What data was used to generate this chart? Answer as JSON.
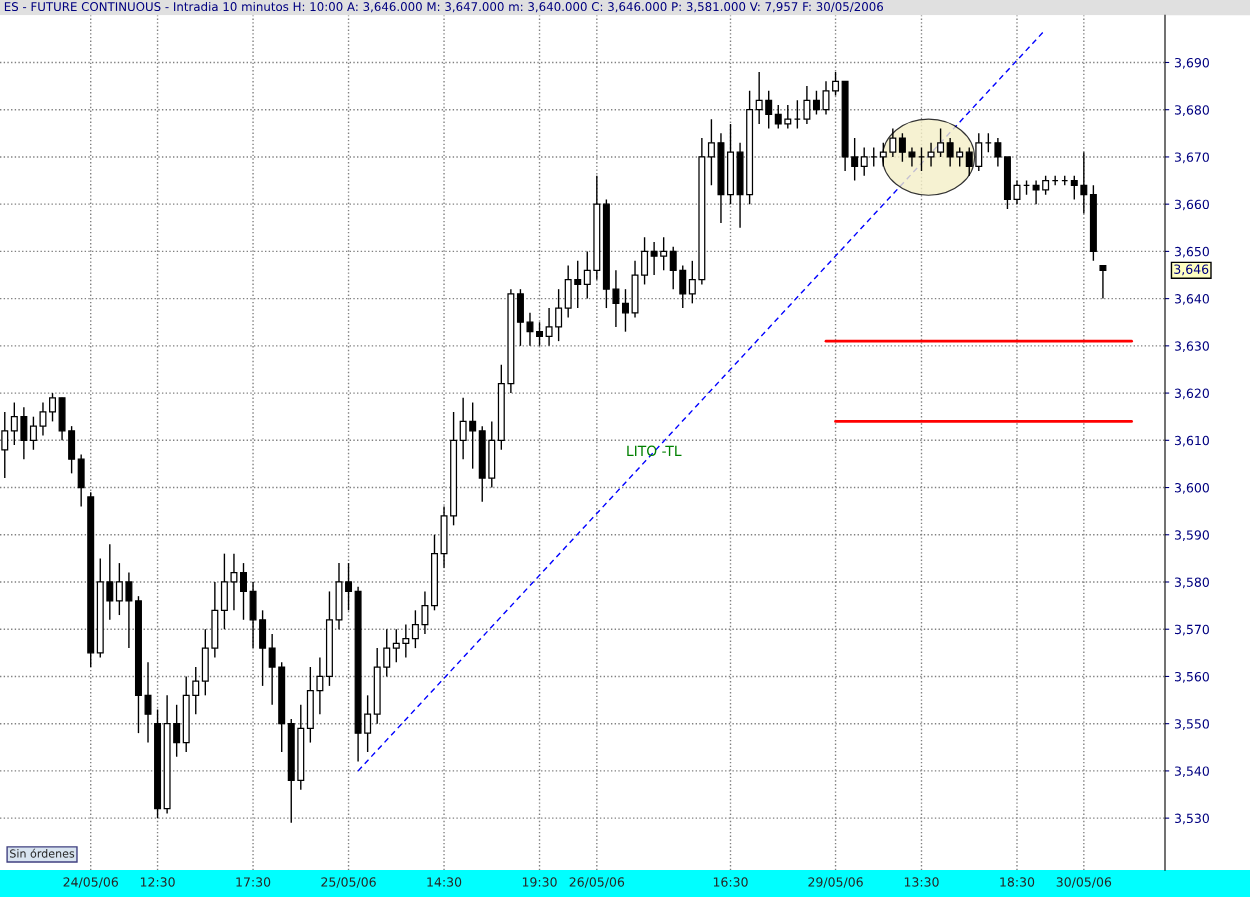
{
  "chart_data": {
    "type": "candlestick",
    "title": "ES - FUTURE CONTINUOUS - Intradia 10 minutos H: 10:00 A: 3,646.000 M: 3,647.000 m: 3,640.000 C: 3,646.000 P: 3,581.000 V: 7,957 F: 30/05/2006",
    "categories": [
      null,
      null,
      null,
      null,
      null,
      null,
      null,
      null,
      null,
      "24/05/06",
      null,
      null,
      null,
      null,
      null,
      null,
      "12:30",
      null,
      null,
      null,
      null,
      null,
      null,
      null,
      null,
      null,
      "17:30",
      null,
      null,
      null,
      null,
      null,
      null,
      null,
      null,
      null,
      "25/05/06",
      null,
      null,
      null,
      null,
      null,
      null,
      null,
      null,
      null,
      "14:30",
      null,
      null,
      null,
      null,
      null,
      null,
      null,
      null,
      null,
      "19:30",
      null,
      null,
      null,
      null,
      null,
      "26/05/06",
      null,
      null,
      null,
      null,
      null,
      null,
      null,
      null,
      null,
      null,
      null,
      null,
      null,
      "16:30",
      null,
      null,
      null,
      null,
      null,
      null,
      null,
      null,
      null,
      null,
      "29/05/06",
      null,
      null,
      null,
      null,
      null,
      null,
      null,
      null,
      "13:30",
      null,
      null,
      null,
      null,
      null,
      null,
      null,
      null,
      null,
      "18:30",
      null,
      null,
      null,
      null,
      null,
      null,
      "30/05/06",
      null,
      null,
      null,
      null,
      null,
      null,
      null,
      null
    ],
    "ohlc": [
      [
        3608,
        3616,
        3602,
        3612
      ],
      [
        3612,
        3618,
        3609,
        3615
      ],
      [
        3615,
        3617,
        3606,
        3610
      ],
      [
        3610,
        3615,
        3608,
        3613
      ],
      [
        3613,
        3618,
        3611,
        3616
      ],
      [
        3616,
        3620,
        3614,
        3619
      ],
      [
        3619,
        3619,
        3610,
        3612
      ],
      [
        3612,
        3613,
        3603,
        3606
      ],
      [
        3606,
        3607,
        3596,
        3600
      ],
      [
        3598,
        3599,
        3562,
        3565
      ],
      [
        3565,
        3585,
        3564,
        3580
      ],
      [
        3580,
        3588,
        3572,
        3576
      ],
      [
        3576,
        3584,
        3573,
        3580
      ],
      [
        3580,
        3582,
        3566,
        3576
      ],
      [
        3576,
        3577,
        3548,
        3556
      ],
      [
        3556,
        3563,
        3546,
        3552
      ],
      [
        3550,
        3553,
        3530,
        3532
      ],
      [
        3532,
        3556,
        3531,
        3550
      ],
      [
        3550,
        3554,
        3543,
        3546
      ],
      [
        3546,
        3560,
        3544,
        3556
      ],
      [
        3556,
        3562,
        3552,
        3559
      ],
      [
        3559,
        3570,
        3556,
        3566
      ],
      [
        3566,
        3580,
        3564,
        3574
      ],
      [
        3574,
        3586,
        3570,
        3580
      ],
      [
        3580,
        3586,
        3574,
        3582
      ],
      [
        3582,
        3584,
        3572,
        3578
      ],
      [
        3578,
        3580,
        3566,
        3572
      ],
      [
        3572,
        3574,
        3558,
        3566
      ],
      [
        3566,
        3569,
        3554,
        3562
      ],
      [
        3562,
        3563,
        3544,
        3550
      ],
      [
        3550,
        3551,
        3529,
        3538
      ],
      [
        3538,
        3554,
        3536,
        3549
      ],
      [
        3549,
        3562,
        3546,
        3557
      ],
      [
        3557,
        3564,
        3552,
        3560
      ],
      [
        3560,
        3578,
        3558,
        3572
      ],
      [
        3572,
        3584,
        3570,
        3580
      ],
      [
        3580,
        3584,
        3574,
        3578
      ],
      [
        3578,
        3579,
        3542,
        3548
      ],
      [
        3548,
        3556,
        3544,
        3552
      ],
      [
        3552,
        3566,
        3550,
        3562
      ],
      [
        3562,
        3570,
        3560,
        3566
      ],
      [
        3566,
        3570,
        3563,
        3567
      ],
      [
        3567,
        3571,
        3564,
        3568
      ],
      [
        3568,
        3574,
        3566,
        3571
      ],
      [
        3571,
        3578,
        3569,
        3575
      ],
      [
        3575,
        3590,
        3574,
        3586
      ],
      [
        3586,
        3596,
        3583,
        3594
      ],
      [
        3594,
        3616,
        3592,
        3610
      ],
      [
        3610,
        3619,
        3606,
        3614
      ],
      [
        3614,
        3618,
        3604,
        3612
      ],
      [
        3612,
        3613,
        3597,
        3602
      ],
      [
        3602,
        3614,
        3600,
        3610
      ],
      [
        3610,
        3626,
        3608,
        3622
      ],
      [
        3622,
        3642,
        3620,
        3641
      ],
      [
        3641,
        3642,
        3630,
        3635
      ],
      [
        3635,
        3637,
        3630,
        3633
      ],
      [
        3633,
        3635,
        3630,
        3632
      ],
      [
        3632,
        3638,
        3630,
        3634
      ],
      [
        3634,
        3642,
        3631,
        3638
      ],
      [
        3638,
        3647,
        3636,
        3644
      ],
      [
        3644,
        3648,
        3638,
        3643
      ],
      [
        3643,
        3650,
        3640,
        3646
      ],
      [
        3646,
        3666,
        3644,
        3660
      ],
      [
        3660,
        3661,
        3638,
        3642
      ],
      [
        3642,
        3646,
        3634,
        3639
      ],
      [
        3639,
        3642,
        3633,
        3637
      ],
      [
        3637,
        3648,
        3636,
        3645
      ],
      [
        3645,
        3653,
        3643,
        3650
      ],
      [
        3650,
        3652,
        3645,
        3649
      ],
      [
        3649,
        3653,
        3646,
        3650
      ],
      [
        3650,
        3651,
        3642,
        3646
      ],
      [
        3646,
        3647,
        3638,
        3641
      ],
      [
        3641,
        3648,
        3639,
        3644
      ],
      [
        3644,
        3674,
        3643,
        3670
      ],
      [
        3670,
        3678,
        3664,
        3673
      ],
      [
        3673,
        3675,
        3656,
        3662
      ],
      [
        3662,
        3677,
        3660,
        3671
      ],
      [
        3671,
        3673,
        3655,
        3662
      ],
      [
        3662,
        3684,
        3660,
        3680
      ],
      [
        3680,
        3688,
        3677,
        3682
      ],
      [
        3682,
        3684,
        3676,
        3679
      ],
      [
        3679,
        3681,
        3676,
        3677
      ],
      [
        3677,
        3681,
        3676,
        3678
      ],
      [
        3678,
        3682,
        3676,
        3678
      ],
      [
        3678,
        3685,
        3677,
        3682
      ],
      [
        3682,
        3684,
        3679,
        3680
      ],
      [
        3680,
        3686,
        3679,
        3684
      ],
      [
        3684,
        3688,
        3683,
        3686
      ],
      [
        3686,
        3686,
        3667,
        3670
      ],
      [
        3670,
        3674,
        3665,
        3668
      ],
      [
        3668,
        3672,
        3666,
        3670
      ],
      [
        3670,
        3672,
        3668,
        3670
      ],
      [
        3670,
        3673,
        3668,
        3671
      ],
      [
        3671,
        3676,
        3670,
        3674
      ],
      [
        3674,
        3675,
        3669,
        3671
      ],
      [
        3671,
        3672,
        3668,
        3670
      ],
      [
        3670,
        3672,
        3667,
        3670
      ],
      [
        3670,
        3673,
        3668,
        3671
      ],
      [
        3671,
        3676,
        3670,
        3673
      ],
      [
        3673,
        3674,
        3668,
        3670
      ],
      [
        3670,
        3672,
        3668,
        3671
      ],
      [
        3671,
        3672,
        3666,
        3668
      ],
      [
        3668,
        3675,
        3667,
        3673
      ],
      [
        3673,
        3675,
        3671,
        3673
      ],
      [
        3673,
        3674,
        3668,
        3670
      ],
      [
        3670,
        3670,
        3659,
        3661
      ],
      [
        3661,
        3665,
        3660,
        3664
      ],
      [
        3664,
        3665,
        3662,
        3664
      ],
      [
        3664,
        3665,
        3660,
        3663
      ],
      [
        3663,
        3666,
        3662,
        3665
      ],
      [
        3665,
        3666,
        3664,
        3665
      ],
      [
        3665,
        3666,
        3664,
        3665
      ],
      [
        3665,
        3666,
        3661,
        3664
      ],
      [
        3664,
        3671,
        3658,
        3662
      ],
      [
        3662,
        3664,
        3648,
        3650
      ],
      [
        3647,
        3647,
        3640,
        3646
      ],
      null,
      null,
      null,
      null,
      null,
      null
    ],
    "series": [
      {
        "type": "line",
        "name": "LITO -TL",
        "color": "#0000ff",
        "line_style": "dashed",
        "values": [
          null,
          null,
          null,
          null,
          null,
          null,
          null,
          null,
          null,
          null,
          null,
          null,
          null,
          null,
          null,
          null,
          null,
          null,
          null,
          null,
          null,
          null,
          null,
          null,
          null,
          null,
          null,
          null,
          null,
          null,
          null,
          null,
          null,
          null,
          null,
          null,
          null,
          3540,
          null,
          null,
          null,
          null,
          null,
          null,
          null,
          null,
          null,
          null,
          null,
          null,
          null,
          null,
          null,
          null,
          null,
          null,
          null,
          null,
          null,
          null,
          null,
          null,
          null,
          null,
          null,
          null,
          null,
          null,
          null,
          null,
          null,
          null,
          null,
          null,
          null,
          null,
          null,
          null,
          null,
          null,
          null,
          null,
          null,
          null,
          null,
          null,
          null,
          null,
          null,
          null,
          null,
          null,
          null,
          null,
          null,
          null,
          null,
          null,
          null,
          null,
          null,
          null,
          null,
          null,
          null,
          null,
          null,
          null,
          null,
          3697,
          null,
          null,
          null,
          null,
          null,
          null,
          null,
          null,
          null,
          null,
          null,
          null
        ]
      },
      {
        "type": "line",
        "color": "#ff0000",
        "line_style": "solid",
        "values": [
          null,
          null,
          null,
          null,
          null,
          null,
          null,
          null,
          null,
          null,
          null,
          null,
          null,
          null,
          null,
          null,
          null,
          null,
          null,
          null,
          null,
          null,
          null,
          null,
          null,
          null,
          null,
          null,
          null,
          null,
          null,
          null,
          null,
          null,
          null,
          null,
          null,
          null,
          null,
          null,
          null,
          null,
          null,
          null,
          null,
          null,
          null,
          null,
          null,
          null,
          null,
          null,
          null,
          null,
          null,
          null,
          null,
          null,
          null,
          null,
          null,
          null,
          null,
          null,
          null,
          null,
          null,
          null,
          null,
          null,
          null,
          null,
          null,
          null,
          null,
          null,
          null,
          null,
          null,
          null,
          null,
          null,
          null,
          null,
          null,
          null,
          3631,
          null,
          null,
          null,
          null,
          null,
          null,
          null,
          null,
          null,
          null,
          null,
          null,
          null,
          null,
          null,
          null,
          null,
          null,
          null,
          null,
          null,
          null,
          null,
          null,
          null,
          null,
          null,
          null,
          null,
          null,
          null,
          3631,
          null,
          null,
          null
        ]
      },
      {
        "type": "line",
        "color": "#ff0000",
        "line_style": "solid",
        "values": [
          null,
          null,
          null,
          null,
          null,
          null,
          null,
          null,
          null,
          null,
          null,
          null,
          null,
          null,
          null,
          null,
          null,
          null,
          null,
          null,
          null,
          null,
          null,
          null,
          null,
          null,
          null,
          null,
          null,
          null,
          null,
          null,
          null,
          null,
          null,
          null,
          null,
          null,
          null,
          null,
          null,
          null,
          null,
          null,
          null,
          null,
          null,
          null,
          null,
          null,
          null,
          null,
          null,
          null,
          null,
          null,
          null,
          null,
          null,
          null,
          null,
          null,
          null,
          null,
          null,
          null,
          null,
          null,
          null,
          null,
          null,
          null,
          null,
          null,
          null,
          null,
          null,
          null,
          null,
          null,
          null,
          null,
          null,
          null,
          null,
          null,
          null,
          3614,
          null,
          null,
          null,
          null,
          null,
          null,
          null,
          null,
          null,
          null,
          null,
          null,
          null,
          null,
          null,
          null,
          null,
          null,
          null,
          null,
          null,
          null,
          null,
          null,
          null,
          null,
          null,
          null,
          null,
          null,
          3614,
          null,
          null,
          null
        ]
      }
    ],
    "ylim": [
      3519,
      3700
    ],
    "yticks": [
      {
        "value": 3530,
        "label": "3,530"
      },
      {
        "value": 3540,
        "label": "3,540"
      },
      {
        "value": 3550,
        "label": "3,550"
      },
      {
        "value": 3560,
        "label": "3,560"
      },
      {
        "value": 3570,
        "label": "3,570"
      },
      {
        "value": 3580,
        "label": "3,580"
      },
      {
        "value": 3590,
        "label": "3,590"
      },
      {
        "value": 3600,
        "label": "3,600"
      },
      {
        "value": 3610,
        "label": "3,610"
      },
      {
        "value": 3620,
        "label": "3,620"
      },
      {
        "value": 3630,
        "label": "3,630"
      },
      {
        "value": 3640,
        "label": "3,640"
      },
      {
        "value": 3650,
        "label": "3,650"
      },
      {
        "value": 3660,
        "label": "3,660"
      },
      {
        "value": 3670,
        "label": "3,670"
      },
      {
        "value": 3680,
        "label": "3,680"
      },
      {
        "value": 3690,
        "label": "3,690"
      }
    ],
    "grid": true,
    "annotations": [
      "3,646",
      "Sin órdenes"
    ]
  }
}
